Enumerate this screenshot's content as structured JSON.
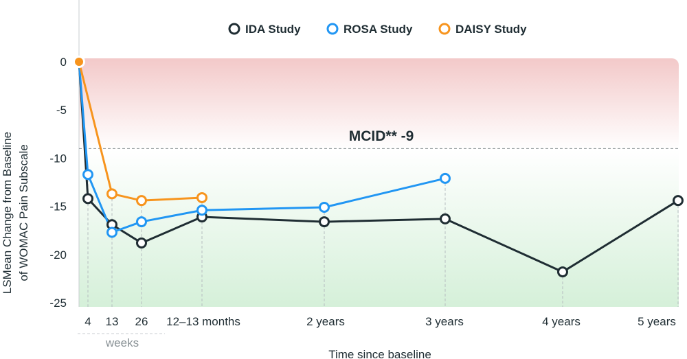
{
  "chart_data": {
    "type": "line",
    "xlabel": "Time since baseline",
    "ylabel": [
      "LSMean Change from Baseline",
      "of WOMAC Pain Subscale"
    ],
    "ylim": [
      -25,
      0
    ],
    "yticks": [
      0,
      -5,
      -10,
      -15,
      -20,
      -25
    ],
    "x_ticks": [
      {
        "key": "4w",
        "label": "4"
      },
      {
        "key": "13w",
        "label": "13"
      },
      {
        "key": "26w",
        "label": "26"
      },
      {
        "key": "12-13m",
        "label": "12–13 months"
      },
      {
        "key": "2y",
        "label": "2 years"
      },
      {
        "key": "3y",
        "label": "3 years"
      },
      {
        "key": "4y",
        "label": "4 years"
      },
      {
        "key": "5y",
        "label": "5 years"
      }
    ],
    "weeks_label": "weeks",
    "mcid": {
      "value": -9,
      "label": "MCID** -9"
    },
    "legend_position": "top",
    "series": [
      {
        "name": "IDA Study",
        "color": "#1f2d33",
        "points": [
          [
            "baseline",
            0
          ],
          [
            "4w",
            -14.2
          ],
          [
            "13w",
            -16.9
          ],
          [
            "26w",
            -18.8
          ],
          [
            "12-13m",
            -16.1
          ],
          [
            "2y",
            -16.6
          ],
          [
            "3y",
            -16.3
          ],
          [
            "4y",
            -21.8
          ],
          [
            "5y",
            -14.4
          ]
        ]
      },
      {
        "name": "ROSA Study",
        "color": "#2196f3",
        "points": [
          [
            "baseline",
            0
          ],
          [
            "4w",
            -11.7
          ],
          [
            "13w",
            -17.7
          ],
          [
            "26w",
            -16.6
          ],
          [
            "12-13m",
            -15.4
          ],
          [
            "2y",
            -15.1
          ],
          [
            "3y",
            -12.1
          ]
        ]
      },
      {
        "name": "DAISY Study",
        "color": "#f7941d",
        "points": [
          [
            "baseline",
            0
          ],
          [
            "13w",
            -13.7
          ],
          [
            "26w",
            -14.4
          ],
          [
            "12-13m",
            -14.1
          ]
        ]
      }
    ],
    "colors": {
      "harm_zone": "#f2cccc",
      "benefit_zone": "#d5f0d9",
      "gridline": "#b5bcbf"
    }
  }
}
